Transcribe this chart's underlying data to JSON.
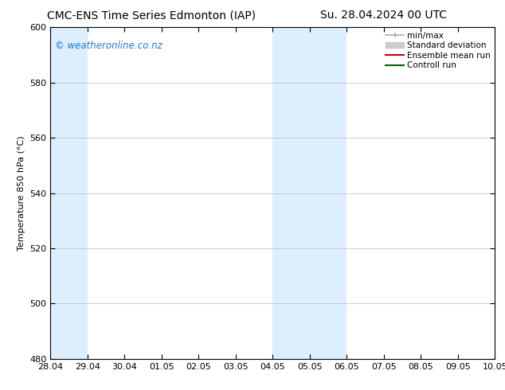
{
  "title_left": "CMC-ENS Time Series Edmonton (IAP)",
  "title_right": "Su. 28.04.2024 00 UTC",
  "ylabel": "Temperature 850 hPa (°C)",
  "ylim": [
    480,
    600
  ],
  "yticks": [
    480,
    500,
    520,
    540,
    560,
    580,
    600
  ],
  "xtick_labels": [
    "28.04",
    "29.04",
    "30.04",
    "01.05",
    "02.05",
    "03.05",
    "04.05",
    "05.05",
    "06.05",
    "07.05",
    "08.05",
    "09.05",
    "10.05"
  ],
  "xtick_dates": [
    "2024-04-28",
    "2024-04-29",
    "2024-04-30",
    "2024-05-01",
    "2024-05-02",
    "2024-05-03",
    "2024-05-04",
    "2024-05-05",
    "2024-05-06",
    "2024-05-07",
    "2024-05-08",
    "2024-05-09",
    "2024-05-10"
  ],
  "xlim_start": "2024-04-28",
  "xlim_end": "2024-05-10",
  "shaded_regions": [
    {
      "start": "2024-04-28",
      "end": "2024-04-29",
      "color": "#ddeeff"
    },
    {
      "start": "2024-05-04",
      "end": "2024-05-06",
      "color": "#ddeeff"
    }
  ],
  "watermark_text": "© weatheronline.co.nz",
  "watermark_color": "#2277cc",
  "legend_entries": [
    {
      "label": "min/max",
      "color": "#aaaaaa",
      "lw": 1.2
    },
    {
      "label": "Standard deviation",
      "color": "#cccccc",
      "lw": 6
    },
    {
      "label": "Ensemble mean run",
      "color": "#cc0000",
      "lw": 1.5
    },
    {
      "label": "Controll run",
      "color": "#006600",
      "lw": 1.5
    }
  ],
  "background_color": "#ffffff",
  "plot_bg_color": "#ffffff",
  "grid_color": "#bbbbbb",
  "border_color": "#000000",
  "title_fontsize": 10,
  "ylabel_fontsize": 8,
  "tick_fontsize": 8,
  "legend_fontsize": 7.5
}
